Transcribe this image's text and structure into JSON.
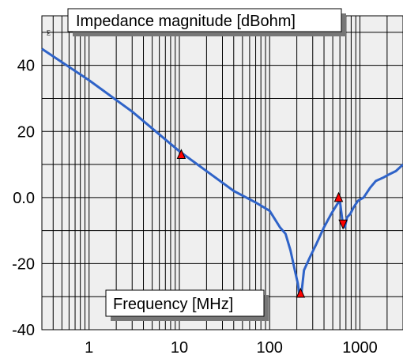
{
  "chart_data": {
    "type": "line",
    "title": "Impedance magnitude [dBohm]",
    "xlabel": "Frequency [MHz]",
    "ylabel": "",
    "xscale": "log",
    "xlim": [
      0.3,
      3000
    ],
    "ylim": [
      -40,
      55
    ],
    "grid": true,
    "x_tick_labels": [
      {
        "value": 1,
        "label": "1"
      },
      {
        "value": 10,
        "label": "10"
      },
      {
        "value": 100,
        "label": "100"
      },
      {
        "value": 1000,
        "label": "1000"
      }
    ],
    "y_tick_labels": [
      {
        "value": 40,
        "label": "40"
      },
      {
        "value": 20,
        "label": "20"
      },
      {
        "value": 0,
        "label": "0.0"
      },
      {
        "value": -20,
        "label": "-20"
      },
      {
        "value": -40,
        "label": "-40"
      }
    ],
    "corner_glyph": "⨊",
    "series": [
      {
        "color": "#2f63c8",
        "x": [
          0.3,
          1,
          3,
          10,
          20,
          40,
          70,
          100,
          130,
          150,
          170,
          190,
          205,
          215,
          225,
          240,
          280,
          330,
          400,
          480,
          560,
          600,
          640,
          680,
          720,
          780,
          850,
          950,
          1100,
          1300,
          1500,
          1800,
          2100,
          2500,
          3000
        ],
        "y": [
          45,
          35.5,
          26,
          14,
          8,
          2,
          -1.5,
          -4,
          -9,
          -11,
          -16,
          -22,
          -26,
          -30,
          -29,
          -22,
          -18,
          -14,
          -9,
          -5,
          -2,
          -1,
          -7,
          -9,
          -6,
          -5,
          -3,
          -1,
          0,
          3,
          5,
          6,
          7,
          8,
          10
        ]
      }
    ],
    "markers": [
      {
        "x": 10.5,
        "y": 13,
        "direction": "up",
        "color": "#ff0000"
      },
      {
        "x": 220,
        "y": -29,
        "direction": "up",
        "color": "#ff0000"
      },
      {
        "x": 580,
        "y": 0,
        "direction": "up",
        "color": "#ff0000"
      },
      {
        "x": 650,
        "y": -8,
        "direction": "down",
        "color": "#ff0000"
      }
    ]
  }
}
